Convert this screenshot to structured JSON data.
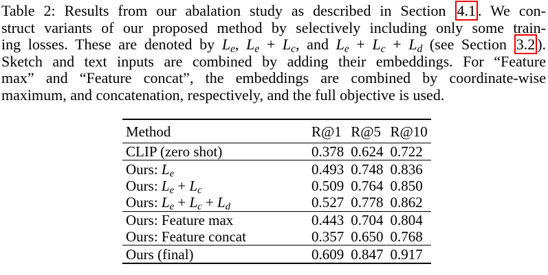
{
  "caption": [
    [
      "Table 2: Results from our abalation study as described in Section ",
      {
        "ref": "4.1"
      },
      ". We con-"
    ],
    [
      "struct variants of our proposed method by selectively including only some train-"
    ],
    [
      "ing losses. These are denoted by ",
      {
        "var": "L",
        "sub": "e"
      },
      ", ",
      {
        "var": "L",
        "sub": "e"
      },
      " + ",
      {
        "var": "L",
        "sub": "c"
      },
      ", and ",
      {
        "var": "L",
        "sub": "e"
      },
      " + ",
      {
        "var": "L",
        "sub": "c"
      },
      " + ",
      {
        "var": "L",
        "sub": "d"
      },
      " (see Section ",
      {
        "ref": "3.2"
      },
      ")."
    ],
    [
      "Sketch and text inputs are combined by adding their embeddings. For “Feature"
    ],
    [
      "max” and “Feature concat”, the embeddings are combined by coordinate-wise"
    ],
    [
      "maximum, and concatenation, respectively, and the full objective is used."
    ]
  ],
  "table": {
    "header": [
      "Method",
      "R@1",
      "R@5",
      "R@10"
    ],
    "groups": [
      [
        {
          "method": [
            "CLIP (zero shot)"
          ],
          "values": [
            "0.378",
            "0.624",
            "0.722"
          ]
        }
      ],
      [
        {
          "method": [
            "Ours: ",
            {
              "var": "L",
              "sub": "e"
            }
          ],
          "values": [
            "0.493",
            "0.748",
            "0.836"
          ]
        },
        {
          "method": [
            "Ours: ",
            {
              "var": "L",
              "sub": "e"
            },
            " + ",
            {
              "var": "L",
              "sub": "c"
            }
          ],
          "values": [
            "0.509",
            "0.764",
            "0.850"
          ]
        },
        {
          "method": [
            "Ours: ",
            {
              "var": "L",
              "sub": "e"
            },
            " + ",
            {
              "var": "L",
              "sub": "c"
            },
            " + ",
            {
              "var": "L",
              "sub": "d"
            }
          ],
          "values": [
            "0.527",
            "0.778",
            "0.862"
          ]
        }
      ],
      [
        {
          "method": [
            "Ours: Feature max"
          ],
          "values": [
            "0.443",
            "0.704",
            "0.804"
          ]
        },
        {
          "method": [
            "Ours: Feature concat"
          ],
          "values": [
            "0.357",
            "0.650",
            "0.768"
          ]
        }
      ],
      [
        {
          "method": [
            "Ours (final)"
          ],
          "values": [
            "0.609",
            "0.847",
            "0.917"
          ],
          "bold": true
        }
      ]
    ]
  }
}
